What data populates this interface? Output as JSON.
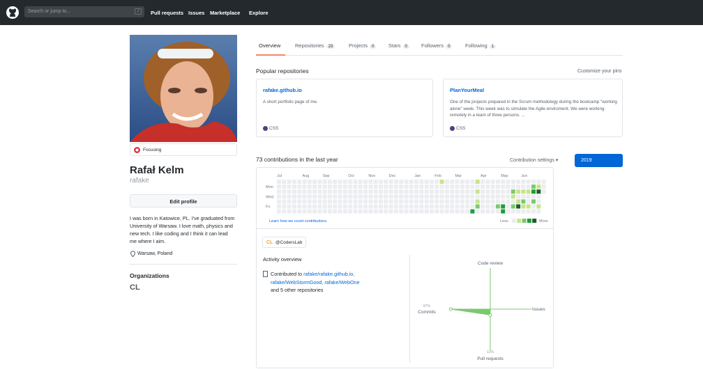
{
  "header": {
    "search_placeholder": "Search or jump to...",
    "slash": "/",
    "nav": [
      "Pull requests",
      "Issues",
      "Marketplace",
      "Explore"
    ]
  },
  "profile": {
    "status": "Focusing",
    "name": "Rafał Kelm",
    "login": "rafake",
    "edit": "Edit profile",
    "bio": "I was born in Katowice, PL. I've graduated from University of Warsaw. I love math, physics and new tech. I like coding and I think it can lead me where I aim.",
    "location": "Warsaw, Poland",
    "organizations_title": "Organizations",
    "org_logo": "CL"
  },
  "tabs": [
    {
      "label": "Overview"
    },
    {
      "label": "Repositories",
      "count": "23"
    },
    {
      "label": "Projects",
      "count": "0"
    },
    {
      "label": "Stars",
      "count": "0"
    },
    {
      "label": "Followers",
      "count": "0"
    },
    {
      "label": "Following",
      "count": "1"
    }
  ],
  "popular": {
    "title": "Popular repositories",
    "customize": "Customize your pins",
    "pins": [
      {
        "name": "rafake.github.io",
        "description": "A short portfolio page of me.",
        "language": "CSS"
      },
      {
        "name": "PlanYourMeal",
        "description": "One of the projects prepared in the Scrum methodology during the bootcamp \"working alone\" week. This week was to simulate the Agile enviroment. We were working remotely in a team of three persons. ...",
        "language": "CSS"
      }
    ]
  },
  "contributions": {
    "title": "73 contributions in the last year",
    "settings": "Contribution settings",
    "year": "2019",
    "months": [
      "Jul",
      "Aug",
      "Sep",
      "Oct",
      "Nov",
      "Dec",
      "Jan",
      "Feb",
      "Mar",
      "Apr",
      "May",
      "Jun"
    ],
    "days": [
      "Mon",
      "Wed",
      "Fri"
    ],
    "learn": "Learn how we count contributions.",
    "less": "Less",
    "more": "More",
    "level_colors": [
      "#ebedf0",
      "#c6e48b",
      "#7bc96f",
      "#239a3b",
      "#196127"
    ],
    "active_days": [
      {
        "week": 32,
        "day": 0,
        "level": 1
      },
      {
        "week": 38,
        "day": 6,
        "level": 3
      },
      {
        "week": 39,
        "day": 0,
        "level": 1
      },
      {
        "week": 39,
        "day": 2,
        "level": 1
      },
      {
        "week": 39,
        "day": 4,
        "level": 1
      },
      {
        "week": 39,
        "day": 5,
        "level": 2
      },
      {
        "week": 43,
        "day": 5,
        "level": 2
      },
      {
        "week": 44,
        "day": 5,
        "level": 3
      },
      {
        "week": 44,
        "day": 6,
        "level": 3
      },
      {
        "week": 46,
        "day": 2,
        "level": 2
      },
      {
        "week": 46,
        "day": 3,
        "level": 1
      },
      {
        "week": 46,
        "day": 5,
        "level": 2
      },
      {
        "week": 47,
        "day": 2,
        "level": 1
      },
      {
        "week": 47,
        "day": 4,
        "level": 1
      },
      {
        "week": 47,
        "day": 5,
        "level": 4
      },
      {
        "week": 48,
        "day": 2,
        "level": 1
      },
      {
        "week": 48,
        "day": 4,
        "level": 2
      },
      {
        "week": 48,
        "day": 5,
        "level": 1
      },
      {
        "week": 49,
        "day": 2,
        "level": 1
      },
      {
        "week": 49,
        "day": 5,
        "level": 1
      },
      {
        "week": 50,
        "day": 1,
        "level": 2
      },
      {
        "week": 50,
        "day": 2,
        "level": 3
      },
      {
        "week": 50,
        "day": 4,
        "level": 2
      },
      {
        "week": 51,
        "day": 1,
        "level": 1
      },
      {
        "week": 51,
        "day": 2,
        "level": 4
      },
      {
        "week": 51,
        "day": 5,
        "level": 1
      }
    ]
  },
  "activity": {
    "org": "@CodersLab",
    "org_logo": "CL",
    "title": "Activity overview",
    "contributed": "Contributed to",
    "repos": [
      "rafake/rafake.github.io,",
      "rafake/WebStormGood,",
      "rafake/WebOne"
    ],
    "others": "and 5 other repositories",
    "chart": {
      "type": "radar",
      "color": "#7bc96f",
      "axes": [
        {
          "name": "Code review",
          "value": 0
        },
        {
          "name": "Issues",
          "value": 0
        },
        {
          "name": "Pull requests",
          "value": 13,
          "label": "13%"
        },
        {
          "name": "Commits",
          "value": 87,
          "label": "87%"
        }
      ]
    }
  }
}
